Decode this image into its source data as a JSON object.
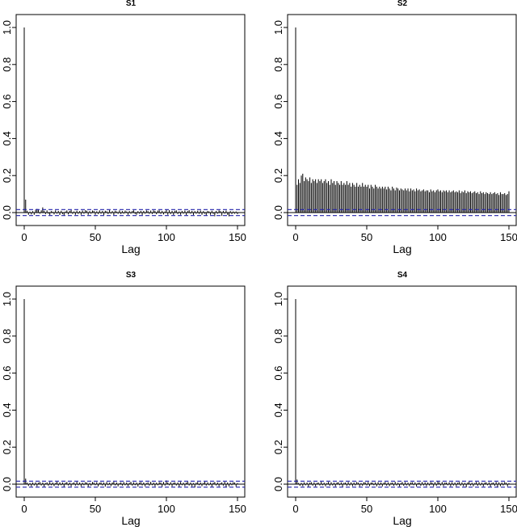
{
  "chart_data": [
    {
      "type": "bar",
      "title": "S1",
      "xlabel": "Lag",
      "ylabel": "",
      "xlim": [
        -4,
        156
      ],
      "ylim": [
        -0.1,
        1.02
      ],
      "xticks": [
        "0",
        "50",
        "100",
        "150"
      ],
      "yticks": [
        "0.0",
        "0.2",
        "0.4",
        "0.6",
        "0.8",
        "1.0"
      ],
      "ci_band": [
        -0.016,
        0.016
      ],
      "colors": {
        "bars": "#000000",
        "ci": "#2222aa",
        "axes": "#000000"
      },
      "x": [
        0,
        1,
        2,
        3,
        4,
        5,
        6,
        7,
        8,
        9,
        10,
        11,
        12,
        13,
        14,
        15,
        16,
        17,
        18,
        19,
        20,
        21,
        22,
        23,
        24,
        25,
        26,
        27,
        28,
        29,
        30,
        31,
        32,
        33,
        34,
        35,
        36,
        37,
        38,
        39,
        40,
        41,
        42,
        43,
        44,
        45,
        46,
        47,
        48,
        49,
        50,
        51,
        52,
        53,
        54,
        55,
        56,
        57,
        58,
        59,
        60,
        61,
        62,
        63,
        64,
        65,
        66,
        67,
        68,
        69,
        70,
        71,
        72,
        73,
        74,
        75,
        76,
        77,
        78,
        79,
        80,
        81,
        82,
        83,
        84,
        85,
        86,
        87,
        88,
        89,
        90,
        91,
        92,
        93,
        94,
        95,
        96,
        97,
        98,
        99,
        100,
        101,
        102,
        103,
        104,
        105,
        106,
        107,
        108,
        109,
        110,
        111,
        112,
        113,
        114,
        115,
        116,
        117,
        118,
        119,
        120,
        121,
        122,
        123,
        124,
        125,
        126,
        127,
        128,
        129,
        130,
        131,
        132,
        133,
        134,
        135,
        136,
        137,
        138,
        139,
        140,
        141,
        142,
        143,
        144,
        145,
        146,
        147,
        148,
        149,
        150
      ],
      "values": [
        1.0,
        0.07,
        0.01,
        -0.012,
        0.005,
        -0.01,
        0.008,
        -0.012,
        0.015,
        0.02,
        0.018,
        -0.006,
        0.012,
        0.028,
        0.01,
        -0.008,
        0.012,
        -0.006,
        -0.014,
        0.008,
        0.005,
        -0.01,
        0.012,
        -0.006,
        0.009,
        -0.013,
        0.01,
        -0.008,
        -0.015,
        0.006,
        0.012,
        -0.01,
        0.009,
        0.013,
        -0.007,
        0.006,
        -0.012,
        0.01,
        -0.007,
        0.008,
        -0.012,
        0.011,
        -0.006,
        0.013,
        0.01,
        -0.012,
        0.008,
        -0.006,
        0.011,
        0.009,
        -0.012,
        0.007,
        -0.008,
        0.012,
        -0.006,
        0.009,
        -0.014,
        0.01,
        0.007,
        -0.008,
        0.013,
        -0.006,
        0.008,
        -0.013,
        0.01,
        0.006,
        -0.007,
        0.012,
        -0.008,
        0.008,
        -0.006,
        0.011,
        0.006,
        -0.012,
        0.008,
        -0.006,
        0.009,
        0.012,
        -0.007,
        -0.012,
        0.008,
        -0.006,
        0.009,
        -0.013,
        0.009,
        -0.006,
        0.012,
        0.008,
        -0.007,
        0.011,
        -0.008,
        0.012,
        0.008,
        -0.009,
        0.011,
        0.012,
        -0.007,
        0.009,
        -0.01,
        0.006,
        0.017,
        -0.012,
        0.013,
        -0.008,
        0.009,
        -0.013,
        0.01,
        0.012,
        -0.008,
        0.006,
        -0.012,
        0.009,
        -0.006,
        0.011,
        -0.014,
        0.008,
        0.013,
        -0.006,
        0.009,
        -0.013,
        0.008,
        -0.006,
        0.01,
        -0.007,
        0.011,
        -0.012,
        0.008,
        -0.006,
        -0.015,
        0.009,
        0.006,
        -0.012,
        0.01,
        -0.007,
        -0.02,
        0.009,
        -0.006,
        0.012,
        0.008,
        -0.018,
        0.009,
        -0.006,
        0.011,
        -0.012,
        -0.02,
        0.008,
        -0.008,
        0.006,
        -0.006,
        0.006,
        -0.008
      ]
    },
    {
      "type": "bar",
      "title": "S2",
      "xlabel": "Lag",
      "ylabel": "",
      "xlim": [
        -4,
        156
      ],
      "ylim": [
        -0.1,
        1.02
      ],
      "xticks": [
        "0",
        "50",
        "100",
        "150"
      ],
      "yticks": [
        "0.0",
        "0.2",
        "0.4",
        "0.6",
        "0.8",
        "1.0"
      ],
      "ci_band": [
        -0.016,
        0.016
      ],
      "colors": {
        "bars": "#000000",
        "ci": "#2222aa",
        "axes": "#000000"
      },
      "x": [
        0,
        1,
        2,
        3,
        4,
        5,
        6,
        7,
        8,
        9,
        10,
        11,
        12,
        13,
        14,
        15,
        16,
        17,
        18,
        19,
        20,
        21,
        22,
        23,
        24,
        25,
        26,
        27,
        28,
        29,
        30,
        31,
        32,
        33,
        34,
        35,
        36,
        37,
        38,
        39,
        40,
        41,
        42,
        43,
        44,
        45,
        46,
        47,
        48,
        49,
        50,
        51,
        52,
        53,
        54,
        55,
        56,
        57,
        58,
        59,
        60,
        61,
        62,
        63,
        64,
        65,
        66,
        67,
        68,
        69,
        70,
        71,
        72,
        73,
        74,
        75,
        76,
        77,
        78,
        79,
        80,
        81,
        82,
        83,
        84,
        85,
        86,
        87,
        88,
        89,
        90,
        91,
        92,
        93,
        94,
        95,
        96,
        97,
        98,
        99,
        100,
        101,
        102,
        103,
        104,
        105,
        106,
        107,
        108,
        109,
        110,
        111,
        112,
        113,
        114,
        115,
        116,
        117,
        118,
        119,
        120,
        121,
        122,
        123,
        124,
        125,
        126,
        127,
        128,
        129,
        130,
        131,
        132,
        133,
        134,
        135,
        136,
        137,
        138,
        139,
        140,
        141,
        142,
        143,
        144,
        145,
        146,
        147,
        148,
        149,
        150
      ],
      "values": [
        1.0,
        0.15,
        0.18,
        0.16,
        0.2,
        0.21,
        0.17,
        0.19,
        0.18,
        0.17,
        0.19,
        0.16,
        0.18,
        0.17,
        0.18,
        0.16,
        0.18,
        0.17,
        0.18,
        0.16,
        0.17,
        0.18,
        0.16,
        0.17,
        0.15,
        0.18,
        0.16,
        0.17,
        0.15,
        0.17,
        0.16,
        0.15,
        0.17,
        0.15,
        0.16,
        0.15,
        0.17,
        0.15,
        0.16,
        0.14,
        0.16,
        0.15,
        0.14,
        0.16,
        0.14,
        0.15,
        0.14,
        0.16,
        0.14,
        0.15,
        0.14,
        0.15,
        0.13,
        0.15,
        0.14,
        0.13,
        0.15,
        0.14,
        0.13,
        0.14,
        0.13,
        0.14,
        0.13,
        0.14,
        0.125,
        0.14,
        0.13,
        0.12,
        0.14,
        0.13,
        0.12,
        0.135,
        0.13,
        0.12,
        0.13,
        0.125,
        0.12,
        0.13,
        0.12,
        0.13,
        0.115,
        0.13,
        0.12,
        0.125,
        0.115,
        0.13,
        0.12,
        0.125,
        0.115,
        0.12,
        0.125,
        0.115,
        0.12,
        0.12,
        0.11,
        0.125,
        0.115,
        0.12,
        0.11,
        0.12,
        0.125,
        0.115,
        0.12,
        0.11,
        0.12,
        0.115,
        0.12,
        0.11,
        0.12,
        0.11,
        0.115,
        0.12,
        0.11,
        0.115,
        0.11,
        0.12,
        0.105,
        0.115,
        0.11,
        0.12,
        0.105,
        0.115,
        0.11,
        0.115,
        0.105,
        0.11,
        0.115,
        0.105,
        0.11,
        0.1,
        0.115,
        0.105,
        0.11,
        0.1,
        0.11,
        0.105,
        0.1,
        0.11,
        0.1,
        0.105,
        0.11,
        0.1,
        0.105,
        0.095,
        0.11,
        0.1,
        0.1,
        0.105,
        0.095,
        0.1,
        0.115
      ]
    },
    {
      "type": "bar",
      "title": "S3",
      "xlabel": "Lag",
      "ylabel": "",
      "xlim": [
        -4,
        156
      ],
      "ylim": [
        -0.1,
        1.02
      ],
      "xticks": [
        "0",
        "50",
        "100",
        "150"
      ],
      "yticks": [
        "0.0",
        "0.2",
        "0.4",
        "0.6",
        "0.8",
        "1.0"
      ],
      "ci_band": [
        -0.016,
        0.016
      ],
      "colors": {
        "bars": "#000000",
        "ci": "#2222aa",
        "axes": "#000000"
      },
      "x": [
        0,
        1,
        2,
        3,
        4,
        5,
        6,
        7,
        8,
        9,
        10,
        11,
        12,
        13,
        14,
        15,
        16,
        17,
        18,
        19,
        20,
        21,
        22,
        23,
        24,
        25,
        26,
        27,
        28,
        29,
        30,
        31,
        32,
        33,
        34,
        35,
        36,
        37,
        38,
        39,
        40,
        41,
        42,
        43,
        44,
        45,
        46,
        47,
        48,
        49,
        50,
        51,
        52,
        53,
        54,
        55,
        56,
        57,
        58,
        59,
        60,
        61,
        62,
        63,
        64,
        65,
        66,
        67,
        68,
        69,
        70,
        71,
        72,
        73,
        74,
        75,
        76,
        77,
        78,
        79,
        80,
        81,
        82,
        83,
        84,
        85,
        86,
        87,
        88,
        89,
        90,
        91,
        92,
        93,
        94,
        95,
        96,
        97,
        98,
        99,
        100,
        101,
        102,
        103,
        104,
        105,
        106,
        107,
        108,
        109,
        110,
        111,
        112,
        113,
        114,
        115,
        116,
        117,
        118,
        119,
        120,
        121,
        122,
        123,
        124,
        125,
        126,
        127,
        128,
        129,
        130,
        131,
        132,
        133,
        134,
        135,
        136,
        137,
        138,
        139,
        140,
        141,
        142,
        143,
        144,
        145,
        146,
        147,
        148,
        149,
        150
      ],
      "values": [
        1.0,
        0.03,
        0.008,
        -0.01,
        0.006,
        -0.012,
        0.009,
        -0.007,
        0.01,
        -0.012,
        0.008,
        0.012,
        -0.007,
        0.009,
        -0.013,
        0.006,
        0.01,
        -0.008,
        0.012,
        -0.006,
        0.009,
        -0.011,
        0.007,
        0.013,
        -0.008,
        0.01,
        -0.006,
        0.009,
        -0.013,
        0.008,
        0.012,
        -0.007,
        0.009,
        -0.012,
        0.006,
        0.01,
        -0.008,
        0.013,
        -0.006,
        0.009,
        -0.012,
        0.008,
        -0.006,
        0.011,
        0.009,
        -0.013,
        0.007,
        -0.008,
        0.012,
        0.009,
        -0.006,
        0.011,
        -0.012,
        0.008,
        0.01,
        -0.007,
        0.009,
        -0.013,
        0.012,
        -0.006,
        0.008,
        -0.011,
        0.009,
        0.013,
        -0.007,
        0.009,
        -0.012,
        0.006,
        0.01,
        -0.008,
        0.012,
        -0.006,
        0.009,
        -0.011,
        0.007,
        0.013,
        -0.008,
        0.01,
        -0.006,
        0.009,
        -0.013,
        0.008,
        0.012,
        -0.007,
        0.009,
        -0.012,
        0.006,
        0.01,
        -0.008,
        0.013,
        -0.006,
        0.009,
        -0.012,
        0.008,
        -0.006,
        0.011,
        0.009,
        -0.013,
        0.012,
        -0.008,
        0.02,
        0.009,
        -0.006,
        0.011,
        -0.012,
        0.008,
        0.01,
        -0.007,
        0.009,
        -0.013,
        0.012,
        -0.006,
        0.008,
        -0.011,
        0.009,
        0.013,
        -0.007,
        0.009,
        -0.012,
        0.006,
        -0.018,
        0.008,
        0.012,
        -0.006,
        0.009,
        -0.011,
        0.007,
        0.013,
        -0.008,
        0.01,
        -0.006,
        0.009,
        -0.013,
        0.008,
        0.012,
        -0.007,
        0.009,
        -0.012,
        0.006,
        0.01,
        -0.008,
        0.013,
        -0.016,
        0.009,
        -0.012,
        0.008,
        -0.006,
        0.011,
        0.009,
        -0.013,
        0.006
      ]
    },
    {
      "type": "bar",
      "title": "S4",
      "xlabel": "Lag",
      "ylabel": "",
      "xlim": [
        -4,
        156
      ],
      "ylim": [
        -0.1,
        1.02
      ],
      "xticks": [
        "0",
        "50",
        "100",
        "150"
      ],
      "yticks": [
        "0.0",
        "0.2",
        "0.4",
        "0.6",
        "0.8",
        "1.0"
      ],
      "ci_band": [
        -0.016,
        0.016
      ],
      "colors": {
        "bars": "#000000",
        "ci": "#2222aa",
        "axes": "#000000"
      },
      "x": [
        0,
        1,
        2,
        3,
        4,
        5,
        6,
        7,
        8,
        9,
        10,
        11,
        12,
        13,
        14,
        15,
        16,
        17,
        18,
        19,
        20,
        21,
        22,
        23,
        24,
        25,
        26,
        27,
        28,
        29,
        30,
        31,
        32,
        33,
        34,
        35,
        36,
        37,
        38,
        39,
        40,
        41,
        42,
        43,
        44,
        45,
        46,
        47,
        48,
        49,
        50,
        51,
        52,
        53,
        54,
        55,
        56,
        57,
        58,
        59,
        60,
        61,
        62,
        63,
        64,
        65,
        66,
        67,
        68,
        69,
        70,
        71,
        72,
        73,
        74,
        75,
        76,
        77,
        78,
        79,
        80,
        81,
        82,
        83,
        84,
        85,
        86,
        87,
        88,
        89,
        90,
        91,
        92,
        93,
        94,
        95,
        96,
        97,
        98,
        99,
        100,
        101,
        102,
        103,
        104,
        105,
        106,
        107,
        108,
        109,
        110,
        111,
        112,
        113,
        114,
        115,
        116,
        117,
        118,
        119,
        120,
        121,
        122,
        123,
        124,
        125,
        126,
        127,
        128,
        129,
        130,
        131,
        132,
        133,
        134,
        135,
        136,
        137,
        138,
        139,
        140,
        141,
        142,
        143,
        144,
        145,
        146,
        147,
        148,
        149,
        150
      ],
      "values": [
        1.0,
        0.025,
        0.006,
        -0.009,
        0.007,
        -0.011,
        0.01,
        -0.006,
        0.009,
        -0.013,
        0.008,
        0.011,
        -0.008,
        0.01,
        -0.012,
        0.007,
        0.009,
        -0.007,
        0.013,
        -0.006,
        0.008,
        -0.012,
        0.006,
        0.012,
        -0.009,
        0.011,
        -0.007,
        0.008,
        -0.012,
        0.009,
        0.011,
        -0.006,
        0.01,
        -0.013,
        0.007,
        0.009,
        -0.009,
        0.012,
        -0.007,
        0.01,
        -0.011,
        0.009,
        -0.007,
        0.012,
        0.008,
        -0.012,
        0.006,
        -0.009,
        0.011,
        0.01,
        -0.007,
        0.012,
        -0.011,
        0.009,
        0.009,
        -0.006,
        0.01,
        -0.012,
        0.011,
        -0.007,
        0.009,
        -0.012,
        0.008,
        0.012,
        -0.008,
        0.01,
        -0.011,
        0.007,
        0.009,
        -0.009,
        0.013,
        -0.007,
        0.008,
        -0.012,
        0.006,
        0.012,
        -0.009,
        0.011,
        -0.007,
        0.008,
        -0.012,
        0.009,
        0.011,
        -0.006,
        0.01,
        -0.013,
        0.007,
        0.009,
        -0.009,
        0.012,
        -0.007,
        0.01,
        -0.011,
        0.009,
        -0.007,
        0.012,
        0.008,
        -0.012,
        0.011,
        -0.009,
        0.018,
        0.01,
        -0.007,
        0.012,
        -0.011,
        0.009,
        0.009,
        -0.006,
        0.01,
        -0.012,
        0.011,
        -0.007,
        0.009,
        -0.012,
        0.008,
        0.012,
        -0.008,
        0.01,
        -0.011,
        0.007,
        -0.017,
        0.009,
        0.013,
        -0.007,
        0.008,
        -0.012,
        0.006,
        0.012,
        -0.009,
        0.011,
        -0.007,
        0.008,
        -0.012,
        0.009,
        0.011,
        -0.006,
        0.01,
        -0.013,
        0.007,
        0.009,
        -0.009,
        0.012,
        -0.015,
        0.01,
        -0.011,
        0.009,
        -0.007,
        0.012,
        0.008,
        -0.012,
        0.006
      ]
    }
  ]
}
